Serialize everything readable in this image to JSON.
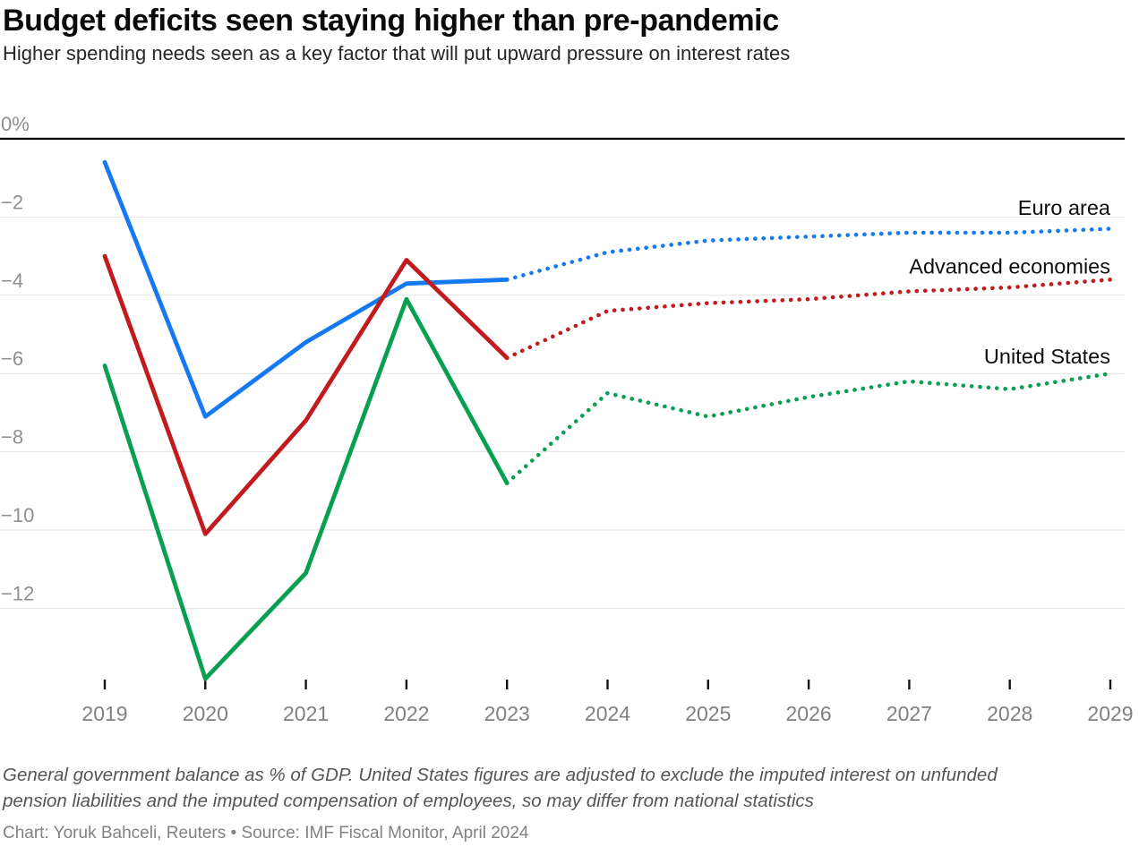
{
  "chart_data": {
    "type": "line",
    "title": "Budget deficits seen staying higher than pre-pandemic",
    "subtitle": "Higher spending needs seen as a key factor that will put upward pressure on interest rates",
    "x": [
      2019,
      2020,
      2021,
      2022,
      2023,
      2024,
      2025,
      2026,
      2027,
      2028,
      2029
    ],
    "forecast_from_year": 2023,
    "series": [
      {
        "name": "Euro area",
        "color": "#1579f2",
        "values": [
          -0.6,
          -7.1,
          -5.2,
          -3.7,
          -3.6,
          -2.9,
          -2.6,
          -2.5,
          -2.4,
          -2.4,
          -2.3
        ]
      },
      {
        "name": "Advanced economies",
        "color": "#c11b1e",
        "values": [
          -3.0,
          -10.1,
          -7.2,
          -3.1,
          -5.6,
          -4.4,
          -4.2,
          -4.1,
          -3.9,
          -3.8,
          -3.6
        ]
      },
      {
        "name": "United States",
        "color": "#089f50",
        "values": [
          -5.8,
          -13.8,
          -11.1,
          -4.1,
          -8.8,
          -6.5,
          -7.1,
          -6.6,
          -6.2,
          -6.4,
          -6.0
        ]
      }
    ],
    "y_ticks": [
      {
        "label": "0%",
        "value": 0
      },
      {
        "label": "−2",
        "value": -2
      },
      {
        "label": "−4",
        "value": -4
      },
      {
        "label": "−6",
        "value": -6
      },
      {
        "label": "−8",
        "value": -8
      },
      {
        "label": "−10",
        "value": -10
      },
      {
        "label": "−12",
        "value": -12
      }
    ],
    "ylim": [
      -14.3,
      0
    ],
    "xlabel": "",
    "ylabel": "",
    "grid": "horizontal",
    "legend_position": "right-inline",
    "line_style": "solid-then-dotted-forecast"
  },
  "footer": {
    "note_lines": [
      "General government balance as % of GDP. United States figures are adjusted to exclude the imputed interest on unfunded",
      "pension liabilities and the imputed compensation of employees, so may differ from national statistics"
    ],
    "credit": "Chart: Yoruk Bahceli, Reuters • Source: IMF Fiscal Monitor, April 2024"
  }
}
